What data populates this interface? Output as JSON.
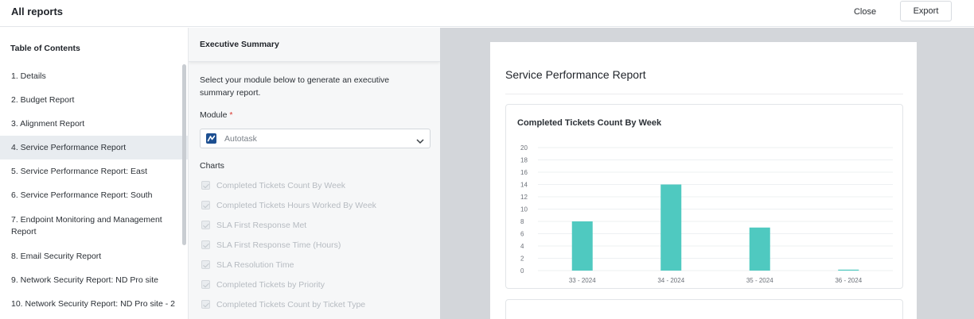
{
  "header": {
    "title": "All reports",
    "close_label": "Close",
    "export_label": "Export"
  },
  "toc": {
    "heading": "Table of Contents",
    "active_index": 3,
    "items": [
      {
        "label": "1. Details"
      },
      {
        "label": "2. Budget Report"
      },
      {
        "label": "3. Alignment Report"
      },
      {
        "label": "4. Service Performance Report"
      },
      {
        "label": "5. Service Performance Report: East"
      },
      {
        "label": "6. Service Performance Report: South"
      },
      {
        "label": "7. Endpoint Monitoring and Management Report"
      },
      {
        "label": "8. Email Security Report"
      },
      {
        "label": "9. Network Security Report: ND Pro site"
      },
      {
        "label": "10. Network Security Report: ND Pro site - 2"
      }
    ]
  },
  "exec_summary": {
    "heading": "Executive Summary",
    "description": "Select your module below to generate an executive summary report.",
    "module_label": "Module",
    "module_required_mark": "*",
    "module_value": "Autotask",
    "charts_label": "Charts",
    "chart_options": [
      "Completed Tickets Count By Week",
      "Completed Tickets Hours Worked By Week",
      "SLA First Response Met",
      "SLA First Response Time (Hours)",
      "SLA Resolution Time",
      "Completed Tickets by Priority",
      "Completed Tickets Count by Ticket Type"
    ]
  },
  "preview": {
    "report_title": "Service Performance Report"
  },
  "chart_data": {
    "type": "bar",
    "title": "Completed Tickets Count By Week",
    "categories": [
      "33 - 2024",
      "34 - 2024",
      "35 - 2024",
      "36 - 2024"
    ],
    "values": [
      8,
      14,
      7,
      0
    ],
    "ylim": [
      0,
      20
    ],
    "yticks": [
      0,
      2,
      4,
      6,
      8,
      10,
      12,
      14,
      16,
      18,
      20
    ],
    "grid": true,
    "bar_color": "#4fc9c0"
  },
  "colors": {
    "accent": "#4fc9c0",
    "required": "#d9342b",
    "module_logo": "#1d4f91"
  }
}
